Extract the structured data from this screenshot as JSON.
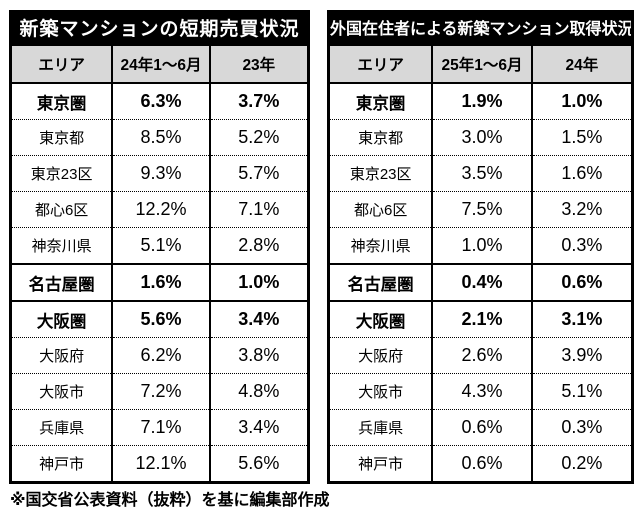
{
  "page": {
    "background": "#ffffff",
    "footer_note": "※国交省公表資料（抜粋）を基に編集部作成"
  },
  "colors": {
    "title_bg": "#000000",
    "title_text": "#ffffff",
    "header_bg": "#d8d8d8",
    "border": "#000000",
    "row_bg": "#ffffff"
  },
  "chart_data": [
    {
      "type": "table",
      "title": "新築マンションの短期売買状況",
      "columns": [
        "エリア",
        "24年1～6月",
        "23年"
      ],
      "rows": [
        {
          "area": "東京圏",
          "values": [
            "6.3%",
            "3.7%"
          ],
          "group": true,
          "solid_top": false
        },
        {
          "area": "東京都",
          "values": [
            "8.5%",
            "5.2%"
          ],
          "group": false,
          "solid_top": false
        },
        {
          "area": "東京23区",
          "values": [
            "9.3%",
            "5.7%"
          ],
          "group": false,
          "solid_top": false
        },
        {
          "area": "都心6区",
          "values": [
            "12.2%",
            "7.1%"
          ],
          "group": false,
          "solid_top": false
        },
        {
          "area": "神奈川県",
          "values": [
            "5.1%",
            "2.8%"
          ],
          "group": false,
          "solid_top": false
        },
        {
          "area": "名古屋圏",
          "values": [
            "1.6%",
            "1.0%"
          ],
          "group": true,
          "solid_top": true
        },
        {
          "area": "大阪圏",
          "values": [
            "5.6%",
            "3.4%"
          ],
          "group": true,
          "solid_top": true
        },
        {
          "area": "大阪府",
          "values": [
            "6.2%",
            "3.8%"
          ],
          "group": false,
          "solid_top": false
        },
        {
          "area": "大阪市",
          "values": [
            "7.2%",
            "4.8%"
          ],
          "group": false,
          "solid_top": false
        },
        {
          "area": "兵庫県",
          "values": [
            "7.1%",
            "3.4%"
          ],
          "group": false,
          "solid_top": false
        },
        {
          "area": "神戸市",
          "values": [
            "12.1%",
            "5.6%"
          ],
          "group": false,
          "solid_top": false
        }
      ]
    },
    {
      "type": "table",
      "title": "外国在住者による新築マンション取得状況",
      "columns": [
        "エリア",
        "25年1～6月",
        "24年"
      ],
      "rows": [
        {
          "area": "東京圏",
          "values": [
            "1.9%",
            "1.0%"
          ],
          "group": true,
          "solid_top": false
        },
        {
          "area": "東京都",
          "values": [
            "3.0%",
            "1.5%"
          ],
          "group": false,
          "solid_top": false
        },
        {
          "area": "東京23区",
          "values": [
            "3.5%",
            "1.6%"
          ],
          "group": false,
          "solid_top": false
        },
        {
          "area": "都心6区",
          "values": [
            "7.5%",
            "3.2%"
          ],
          "group": false,
          "solid_top": false
        },
        {
          "area": "神奈川県",
          "values": [
            "1.0%",
            "0.3%"
          ],
          "group": false,
          "solid_top": false
        },
        {
          "area": "名古屋圏",
          "values": [
            "0.4%",
            "0.6%"
          ],
          "group": true,
          "solid_top": true
        },
        {
          "area": "大阪圏",
          "values": [
            "2.1%",
            "3.1%"
          ],
          "group": true,
          "solid_top": true
        },
        {
          "area": "大阪府",
          "values": [
            "2.6%",
            "3.9%"
          ],
          "group": false,
          "solid_top": false
        },
        {
          "area": "大阪市",
          "values": [
            "4.3%",
            "5.1%"
          ],
          "group": false,
          "solid_top": false
        },
        {
          "area": "兵庫県",
          "values": [
            "0.6%",
            "0.3%"
          ],
          "group": false,
          "solid_top": false
        },
        {
          "area": "神戸市",
          "values": [
            "0.6%",
            "0.2%"
          ],
          "group": false,
          "solid_top": false
        }
      ]
    }
  ]
}
